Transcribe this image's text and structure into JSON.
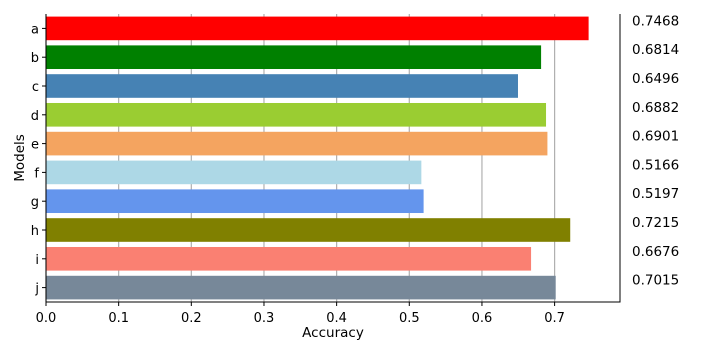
{
  "chart_data": {
    "type": "bar",
    "orientation": "horizontal",
    "categories": [
      "a",
      "b",
      "c",
      "d",
      "e",
      "f",
      "g",
      "h",
      "i",
      "j"
    ],
    "values": [
      0.7468,
      0.6814,
      0.6496,
      0.6882,
      0.6901,
      0.5166,
      0.5197,
      0.7215,
      0.6676,
      0.7015
    ],
    "value_labels": [
      "0.7468",
      "0.6814",
      "0.6496",
      "0.6882",
      "0.6901",
      "0.5166",
      "0.5197",
      "0.7215",
      "0.6676",
      "0.7015"
    ],
    "colors": [
      "#ff0000",
      "#008000",
      "#4682b4",
      "#9acd32",
      "#f4a460",
      "#add8e6",
      "#6495ed",
      "#808000",
      "#fa8072",
      "#778899"
    ],
    "xlabel": "Accuracy",
    "ylabel": "Models",
    "xlim": [
      0,
      0.79
    ],
    "xticks": [
      0.0,
      0.1,
      0.2,
      0.3,
      0.4,
      0.5,
      0.6,
      0.7
    ],
    "xtick_labels": [
      "0.0",
      "0.1",
      "0.2",
      "0.3",
      "0.4",
      "0.5",
      "0.6",
      "0.7"
    ],
    "grid": "x-major",
    "category_order": "top-to-bottom"
  }
}
